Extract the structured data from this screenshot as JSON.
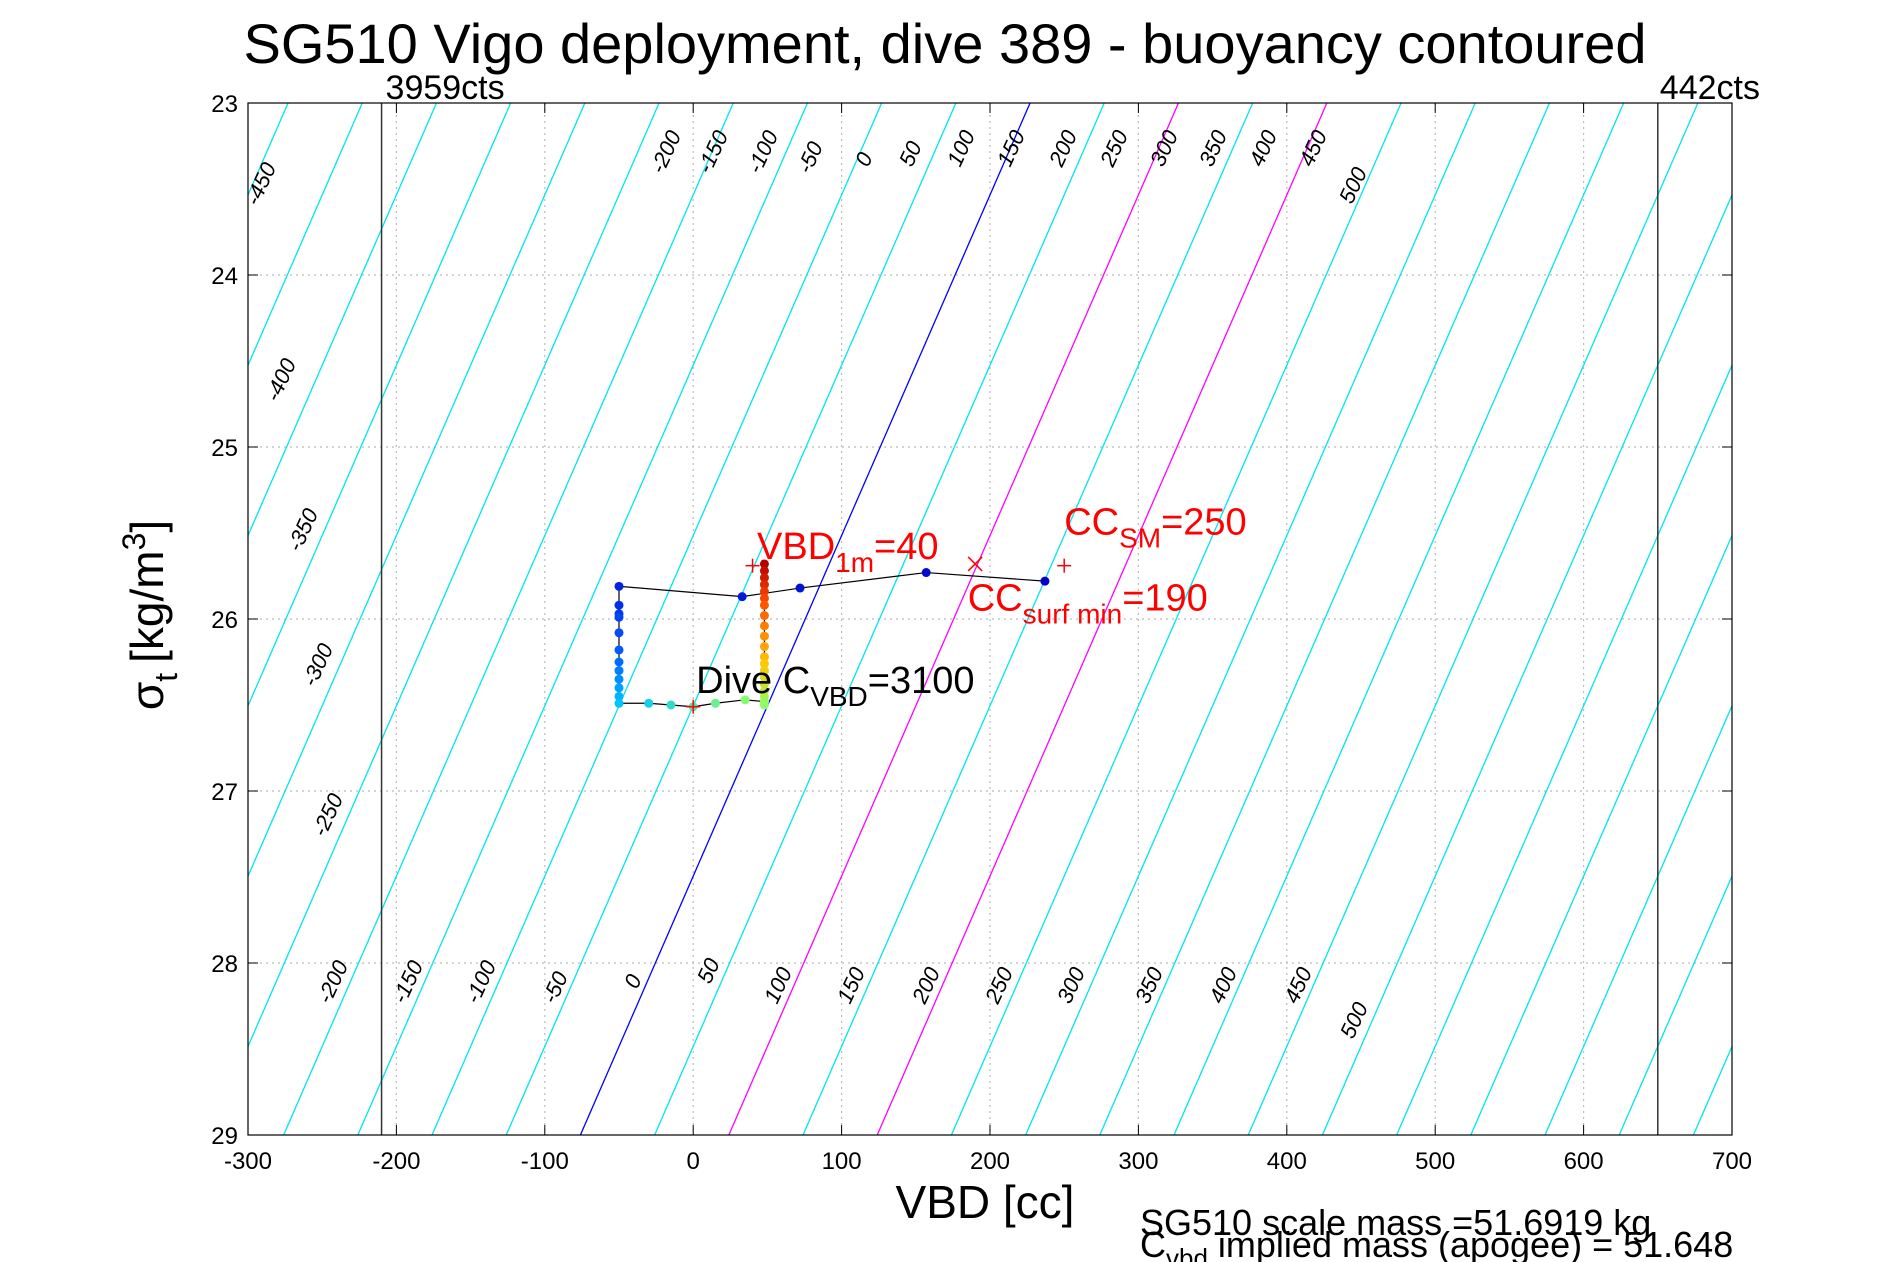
{
  "title": "SG510 Vigo deployment, dive 389 - buoyancy contoured",
  "footer": {
    "scale_mass": "SG510 scale mass =51.6919 kg",
    "implied_mass_prefix": "C",
    "implied_mass_sub": "vbd",
    "implied_mass_suffix": " implied mass (apogee) = 51.648"
  },
  "chart_data": {
    "type": "scatter",
    "xlabel": "VBD [cc]",
    "ylabel_symbol": "σ",
    "ylabel_sub": "t",
    "ylabel_unit": "[kg/m",
    "ylabel_sup": "3",
    "ylabel_close": "]",
    "xlim": [
      -300,
      700
    ],
    "ylim": [
      23,
      29
    ],
    "y_reversed": true,
    "grid": true,
    "x_ticks": [
      -300,
      -200,
      -100,
      0,
      100,
      200,
      300,
      400,
      500,
      600,
      700
    ],
    "y_ticks": [
      23,
      24,
      25,
      26,
      27,
      28,
      29
    ],
    "vbd_limits": [
      {
        "x": -210,
        "label": "3959cts"
      },
      {
        "x": 650,
        "label": "442cts"
      }
    ],
    "buoyancy_contours": {
      "slope_cc_per_sigma": -120,
      "x_at_top": [
        -540,
        -490,
        -440,
        -390,
        -340,
        -290,
        -240,
        -190,
        -140,
        -90,
        -40,
        10,
        60,
        110,
        160,
        210,
        260,
        310,
        360,
        410,
        460,
        510,
        560,
        610,
        660
      ],
      "x_at_bottom": [
        -260,
        -210,
        -160,
        -110,
        -60,
        -10,
        40,
        90,
        140,
        190,
        240,
        290,
        340,
        390,
        440,
        490,
        540,
        590,
        640,
        690
      ],
      "top_labels": [
        "-450",
        "-400",
        "-350",
        "-300",
        "-250",
        "-200",
        "-150",
        "-100",
        "-50",
        "0",
        "50",
        "100",
        "150",
        "200",
        "250",
        "300",
        "350",
        "400",
        "450",
        "500"
      ],
      "bottom_labels": [
        "-200",
        "-150",
        "-100",
        "-50",
        "0",
        "50",
        "100",
        "150",
        "200",
        "250",
        "300",
        "350",
        "400",
        "450",
        "500"
      ],
      "zero_color": "#0000ff",
      "highlight_color": "#ff00ff",
      "default_color": "#00e5ee",
      "highlight_values": [
        100,
        200
      ]
    },
    "series": [
      {
        "x": [
          237,
          157,
          72,
          33,
          -50,
          -50,
          -50,
          -50,
          -50,
          -50,
          -50,
          -50,
          -50,
          -50,
          -50,
          -50,
          -30,
          -15,
          0,
          15,
          35,
          48
        ],
        "y": [
          25.78,
          25.73,
          25.82,
          25.87,
          25.81,
          25.92,
          25.97,
          25.99,
          26.08,
          26.18,
          26.25,
          26.3,
          26.35,
          26.4,
          26.45,
          26.49,
          26.49,
          26.5,
          26.51,
          26.49,
          26.47,
          26.48
        ]
      },
      {
        "x": [
          48,
          48,
          48,
          48,
          48,
          48,
          48,
          48,
          48,
          48,
          48,
          48,
          48,
          48,
          48,
          48,
          48,
          48,
          48,
          48
        ],
        "y": [
          25.68,
          25.72,
          25.76,
          25.8,
          25.84,
          25.88,
          25.92,
          25.98,
          26.04,
          26.1,
          26.16,
          26.22,
          26.26,
          26.3,
          26.34,
          26.38,
          26.42,
          26.45,
          26.48,
          26.5
        ]
      }
    ],
    "markers": [
      {
        "x": 40,
        "y": 25.69,
        "symbol": "+",
        "color": "#ff0000"
      },
      {
        "x": 250,
        "y": 25.69,
        "symbol": "+",
        "color": "#ff0000"
      },
      {
        "x": 190,
        "y": 25.68,
        "symbol": "x",
        "color": "#ff0000"
      },
      {
        "x": 0,
        "y": 26.51,
        "symbol": "+",
        "color": "#ff0000"
      }
    ],
    "annotations": [
      {
        "x": 43,
        "y": 25.65,
        "main": "VBD",
        "sub": "1m",
        "tail": "=40",
        "color": "#ff0000"
      },
      {
        "x": 250,
        "y": 25.51,
        "main": "CC",
        "sub": "SM",
        "tail": "=250",
        "color": "#ff0000"
      },
      {
        "x": 185,
        "y": 25.95,
        "main": "CC",
        "sub": "surf min",
        "tail": "=190",
        "color": "#ff0000"
      },
      {
        "x": 2,
        "y": 26.43,
        "main": "Dive C",
        "sub": "VBD",
        "tail": "=3100",
        "color": "#000000"
      }
    ]
  }
}
